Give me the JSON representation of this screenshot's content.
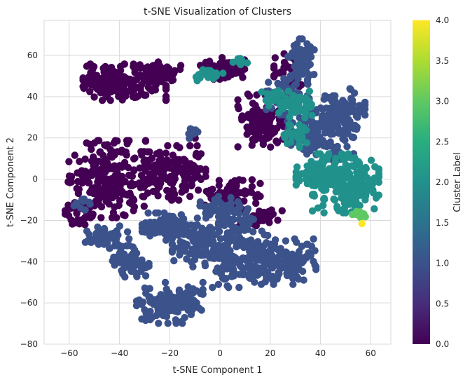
{
  "chart_data": {
    "type": "scatter",
    "title": "t-SNE Visualization of Clusters",
    "xlabel": "t-SNE Component 1",
    "ylabel": "t-SNE Component 2",
    "xlim": [
      -70,
      68
    ],
    "ylim": [
      -80,
      77
    ],
    "xticks": [
      -60,
      -40,
      -20,
      0,
      20,
      40,
      60
    ],
    "yticks": [
      -80,
      -60,
      -40,
      -20,
      0,
      20,
      40,
      60
    ],
    "grid": true,
    "colorbar": {
      "label": "Cluster Label",
      "range": [
        0.0,
        4.0
      ],
      "ticks": [
        "0.0",
        "0.5",
        "1.0",
        "1.5",
        "2.0",
        "2.5",
        "3.0",
        "3.5",
        "4.0"
      ],
      "colormap": "viridis"
    },
    "colors": {
      "cluster_0": "#440154",
      "cluster_1": "#3b528b",
      "cluster_2": "#21918c",
      "cluster_3": "#5ec962",
      "cluster_4": "#fde725"
    },
    "clusters": [
      {
        "label": 0,
        "blobs": [
          {
            "cx": -38,
            "cy": 47,
            "rx": 15,
            "ry": 8,
            "n": 170
          },
          {
            "cx": -23,
            "cy": 52,
            "rx": 7,
            "ry": 5,
            "n": 50
          },
          {
            "cx": 1,
            "cy": 54,
            "rx": 8,
            "ry": 5,
            "n": 60
          },
          {
            "cx": -45,
            "cy": 0,
            "rx": 14,
            "ry": 17,
            "n": 220
          },
          {
            "cx": -20,
            "cy": 3,
            "rx": 13,
            "ry": 12,
            "n": 150
          },
          {
            "cx": 5,
            "cy": -8,
            "rx": 10,
            "ry": 7,
            "n": 90
          },
          {
            "cx": 17,
            "cy": 28,
            "rx": 9,
            "ry": 12,
            "n": 110
          },
          {
            "cx": 27,
            "cy": 52,
            "rx": 5,
            "ry": 8,
            "n": 40
          },
          {
            "cx": -11,
            "cy": 22,
            "rx": 2,
            "ry": 2,
            "n": 8
          },
          {
            "cx": 13,
            "cy": -20,
            "rx": 5,
            "ry": 4,
            "n": 20
          },
          {
            "cx": 20,
            "cy": -18,
            "rx": 5,
            "ry": 3,
            "n": 15
          },
          {
            "cx": -55,
            "cy": -17,
            "rx": 6,
            "ry": 5,
            "n": 30
          }
        ]
      },
      {
        "label": 1,
        "blobs": [
          {
            "cx": -36,
            "cy": -40,
            "rx": 7,
            "ry": 7,
            "n": 60
          },
          {
            "cx": -45,
            "cy": -28,
            "rx": 8,
            "ry": 5,
            "n": 50
          },
          {
            "cx": -20,
            "cy": -23,
            "rx": 10,
            "ry": 6,
            "n": 80
          },
          {
            "cx": -20,
            "cy": -60,
            "rx": 12,
            "ry": 9,
            "n": 120
          },
          {
            "cx": -8,
            "cy": -32,
            "rx": 10,
            "ry": 10,
            "n": 100
          },
          {
            "cx": 8,
            "cy": -36,
            "rx": 10,
            "ry": 15,
            "n": 160
          },
          {
            "cx": 25,
            "cy": -40,
            "rx": 12,
            "ry": 10,
            "n": 140
          },
          {
            "cx": 2,
            "cy": -15,
            "rx": 10,
            "ry": 6,
            "n": 60
          },
          {
            "cx": 32,
            "cy": 57,
            "rx": 5,
            "ry": 10,
            "n": 70
          },
          {
            "cx": 40,
            "cy": 25,
            "rx": 12,
            "ry": 14,
            "n": 180
          },
          {
            "cx": 50,
            "cy": 33,
            "rx": 7,
            "ry": 10,
            "n": 70
          },
          {
            "cx": 25,
            "cy": 40,
            "rx": 6,
            "ry": 8,
            "n": 50
          },
          {
            "cx": -55,
            "cy": -12,
            "rx": 3,
            "ry": 3,
            "n": 10
          },
          {
            "cx": -11,
            "cy": 23,
            "rx": 2,
            "ry": 3,
            "n": 10
          }
        ]
      },
      {
        "label": 2,
        "blobs": [
          {
            "cx": 50,
            "cy": -2,
            "rx": 12,
            "ry": 13,
            "n": 230
          },
          {
            "cx": 38,
            "cy": 2,
            "rx": 7,
            "ry": 6,
            "n": 70
          },
          {
            "cx": 30,
            "cy": 36,
            "rx": 6,
            "ry": 6,
            "n": 50
          },
          {
            "cx": 31,
            "cy": 22,
            "rx": 5,
            "ry": 6,
            "n": 30
          },
          {
            "cx": -4,
            "cy": 51,
            "rx": 5,
            "ry": 3,
            "n": 20
          },
          {
            "cx": 8,
            "cy": 57,
            "rx": 3,
            "ry": 2,
            "n": 10
          },
          {
            "cx": 21,
            "cy": 40,
            "rx": 4,
            "ry": 4,
            "n": 20
          }
        ]
      },
      {
        "label": 3,
        "blobs": [
          {
            "cx": 56,
            "cy": -17,
            "rx": 3,
            "ry": 2,
            "n": 8
          }
        ]
      },
      {
        "label": 4,
        "points": [
          [
            56.5,
            -21.5
          ]
        ]
      }
    ]
  }
}
